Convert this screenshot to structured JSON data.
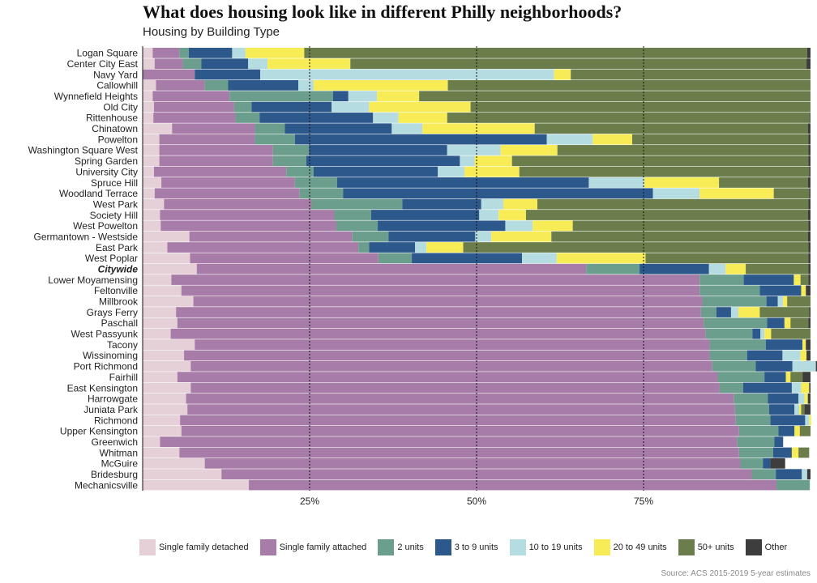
{
  "chart_data": {
    "type": "bar",
    "orientation": "horizontal",
    "stacked": true,
    "title": "What does housing look like in different Philly neighborhoods?",
    "subtitle": "Housing by Building Type",
    "source": "Source: ACS 2015-2019 5-year estimates",
    "xlim": [
      0,
      100
    ],
    "xticks": [
      25,
      50,
      75
    ],
    "xtick_labels": [
      "25%",
      "50%",
      "75%"
    ],
    "highlight_category": "Citywide",
    "categories": [
      "Logan Square",
      "Center City East",
      "Navy Yard",
      "Callowhill",
      "Wynnefield Heights",
      "Old City",
      "Rittenhouse",
      "Chinatown",
      "Powelton",
      "Washington Square West",
      "Spring Garden",
      "University City",
      "Spruce Hill",
      "Woodland Terrace",
      "West Park",
      "Society Hill",
      "West Powelton",
      "Germantown - Westside",
      "East Park",
      "West Poplar",
      "Citywide",
      "Lower Moyamensing",
      "Feltonville",
      "Millbrook",
      "Grays Ferry",
      "Paschall",
      "West Passyunk",
      "Tacony",
      "Wissinoming",
      "Port Richmond",
      "Fairhill",
      "East Kensington",
      "Harrowgate",
      "Juniata Park",
      "Richmond",
      "Upper Kensington",
      "Greenwich",
      "Whitman",
      "McGuire",
      "Bridesburg",
      "Mechanicsville"
    ],
    "series": [
      {
        "name": "Single family detached",
        "color": "#e5d0d8",
        "values": [
          1.5,
          1.8,
          0,
          2,
          1.5,
          1.7,
          1.6,
          4.4,
          2.5,
          2.5,
          2.5,
          1.7,
          2.8,
          1.8,
          3.2,
          2.6,
          2.7,
          7,
          3.7,
          7.1,
          8.1,
          4.3,
          5.8,
          7.6,
          5,
          5.2,
          4.2,
          7.8,
          6.2,
          7.2,
          5.2,
          7.2,
          6.5,
          6.7,
          5.6,
          5.8,
          2.6,
          5.5,
          9.3,
          11.8,
          15.9
        ]
      },
      {
        "name": "Single family attached",
        "color": "#a87ca8",
        "values": [
          4,
          4.2,
          7.8,
          7.3,
          11.5,
          12,
          12.3,
          12.4,
          14.3,
          17,
          17,
          19.8,
          20,
          21.7,
          22.1,
          26.1,
          26.3,
          24.4,
          28.6,
          28.2,
          58.3,
          79.1,
          77.6,
          76.2,
          78.6,
          78.8,
          80.1,
          77.1,
          78.7,
          78.1,
          80.9,
          79.2,
          82,
          82,
          83.2,
          83.5,
          86.4,
          83.8,
          80.2,
          79.4,
          79
        ]
      },
      {
        "name": "2 units",
        "color": "#6b9e8c",
        "values": [
          1.4,
          2.8,
          0,
          3.5,
          15.5,
          2.6,
          3.6,
          4.5,
          6,
          5.4,
          5,
          4.1,
          6.3,
          6.5,
          13.6,
          5.5,
          6.2,
          5.4,
          1.6,
          5,
          8,
          6.6,
          9,
          9.6,
          2.3,
          9.5,
          7,
          8.4,
          5.6,
          6.5,
          7,
          3.5,
          5.1,
          5.1,
          5.2,
          5.9,
          5.6,
          5.1,
          3.4,
          3.6,
          5
        ]
      },
      {
        "name": "3 to 9 units",
        "color": "#2d588c",
        "values": [
          6.5,
          7,
          9.8,
          10.5,
          2.3,
          12,
          17,
          16,
          37.7,
          20.7,
          23,
          18.6,
          37.7,
          46.4,
          11.8,
          16.2,
          19.1,
          13,
          6.9,
          16.5,
          10.4,
          7.5,
          6.2,
          1.7,
          2.2,
          2.6,
          1.2,
          5.5,
          5.3,
          5.5,
          3.2,
          7.3,
          4.6,
          3.8,
          5.2,
          2.4,
          1.3,
          2.8,
          1.1,
          3.9,
          0
        ]
      },
      {
        "name": "10 to 19 units",
        "color": "#b5dce0",
        "values": [
          2,
          2.9,
          44,
          2.3,
          4.3,
          5.6,
          3.8,
          4.6,
          6.9,
          8,
          2.2,
          4,
          8.3,
          7,
          3.3,
          2.9,
          4.1,
          2.4,
          1.7,
          5.2,
          2.5,
          0,
          0,
          0.8,
          1.1,
          0,
          0.6,
          0,
          2.7,
          3.5,
          0,
          1.4,
          0.9,
          0.7,
          0.6,
          0,
          0,
          0,
          0,
          0.8,
          0
        ]
      },
      {
        "name": "20 to 49 units",
        "color": "#f7ec55",
        "values": [
          8.8,
          12.4,
          2.5,
          20.1,
          6.3,
          15.2,
          7.3,
          16.8,
          5.9,
          8.5,
          5.6,
          8.2,
          11.2,
          11.1,
          5.1,
          4.1,
          6,
          9,
          5.5,
          13.3,
          3,
          1,
          0.7,
          0.6,
          3.2,
          0.9,
          1,
          0.5,
          0.9,
          0,
          0.7,
          1.2,
          0.5,
          0.3,
          0.3,
          0.8,
          0,
          1,
          0,
          0,
          0
        ]
      },
      {
        "name": "50+ units",
        "color": "#6b7d4a",
        "values": [
          75.3,
          68.3,
          35.9,
          54.3,
          58.6,
          50.9,
          54.3,
          40.9,
          26.4,
          37.6,
          44.4,
          43.4,
          13.3,
          5.3,
          40.6,
          42.2,
          35.3,
          38.4,
          51.7,
          24.4,
          9.4,
          1.2,
          0,
          3.5,
          7.4,
          2.7,
          5.9,
          0,
          0,
          0,
          1.8,
          0,
          0,
          0.5,
          0,
          1.6,
          0,
          1.6,
          0,
          0,
          0
        ]
      },
      {
        "name": "Other",
        "color": "#3d3d3d",
        "values": [
          0.5,
          0.6,
          0,
          0,
          0,
          0,
          0.1,
          0.4,
          0.3,
          0.3,
          0.3,
          0.2,
          0.4,
          0.2,
          0.3,
          0.4,
          0.3,
          0.4,
          0.3,
          0.3,
          0.3,
          0.3,
          0.7,
          0,
          0.2,
          0.3,
          0,
          0.7,
          0.6,
          0.2,
          1.2,
          0.2,
          0.4,
          0.9,
          0,
          0,
          0,
          0,
          2.2,
          0.5,
          0
        ]
      }
    ],
    "legend_position": "bottom",
    "grid": false
  }
}
